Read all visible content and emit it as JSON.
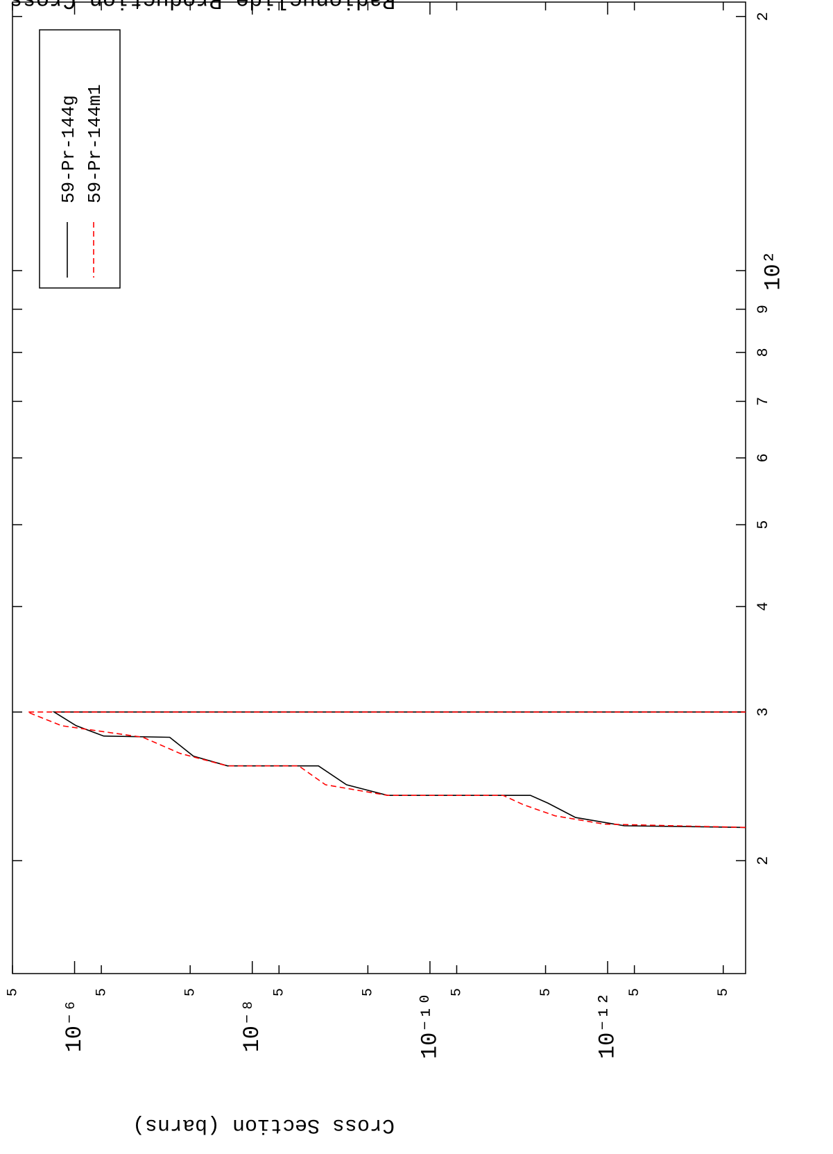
{
  "chart_data": {
    "type": "line",
    "title": "Radionuclide Production Cross Section",
    "y_label": "Cross Section (barns)",
    "x_scale": "log",
    "y_scale": "log",
    "xlim": [
      14.7,
      208
    ],
    "ylim": [
      2.8e-14,
      5e-06
    ],
    "xticks": [
      {
        "value": 20,
        "label": "2"
      },
      {
        "value": 30,
        "label": "3"
      },
      {
        "value": 40,
        "label": "4"
      },
      {
        "value": 50,
        "label": "5"
      },
      {
        "value": 60,
        "label": "6"
      },
      {
        "value": 70,
        "label": "7"
      },
      {
        "value": 80,
        "label": "8"
      },
      {
        "value": 90,
        "label": "9"
      },
      {
        "value": 100,
        "label": "10²"
      },
      {
        "value": 200,
        "label": "2"
      }
    ],
    "yticks": [
      {
        "value": 5e-06,
        "label": "5"
      },
      {
        "value": 1e-06,
        "label": "10⁻⁶"
      },
      {
        "value": 5e-07,
        "label": "5"
      },
      {
        "value": 5e-08,
        "label": "5"
      },
      {
        "value": 1e-08,
        "label": "10⁻⁸"
      },
      {
        "value": 5e-09,
        "label": "5"
      },
      {
        "value": 5e-10,
        "label": "5"
      },
      {
        "value": 1e-10,
        "label": "10⁻¹⁰"
      },
      {
        "value": 5e-11,
        "label": "5"
      },
      {
        "value": 5e-12,
        "label": "5"
      },
      {
        "value": 1e-12,
        "label": "10⁻¹²"
      },
      {
        "value": 5e-13,
        "label": "5"
      },
      {
        "value": 5e-14,
        "label": "5"
      }
    ],
    "legend": "top-left",
    "series": [
      {
        "name": "59-Pr-144g",
        "color": "#000000",
        "dash": false,
        "x": [
          21.9,
          22.0,
          22.5,
          23.4,
          23.9,
          23.9,
          24.6,
          25.9,
          25.9,
          26.6,
          28.0,
          28.1,
          28.9,
          30.0,
          30.0
        ],
        "values": [
          2.8e-14,
          6.5e-13,
          2.3e-12,
          4.7e-12,
          7.4e-12,
          3e-10,
          8.7e-10,
          1.8e-09,
          1.9e-08,
          4.6e-08,
          8.5e-08,
          4.7e-07,
          9.6e-07,
          1.7e-06,
          2.8e-14
        ]
      },
      {
        "name": "59-Pr-144m1",
        "color": "#ff0000",
        "dash": true,
        "x": [
          21.9,
          22.1,
          22.6,
          23.3,
          23.9,
          23.9,
          24.6,
          25.9,
          25.9,
          26.8,
          28.0,
          28.9,
          30.0,
          30.0
        ],
        "values": [
          2.8e-14,
          1.1e-12,
          3.9e-12,
          8.9e-12,
          1.5e-11,
          3e-10,
          1.5e-09,
          3e-09,
          1.9e-08,
          6.5e-08,
          1.7e-07,
          1.4e-06,
          3.4e-06,
          2.8e-14
        ]
      }
    ]
  }
}
